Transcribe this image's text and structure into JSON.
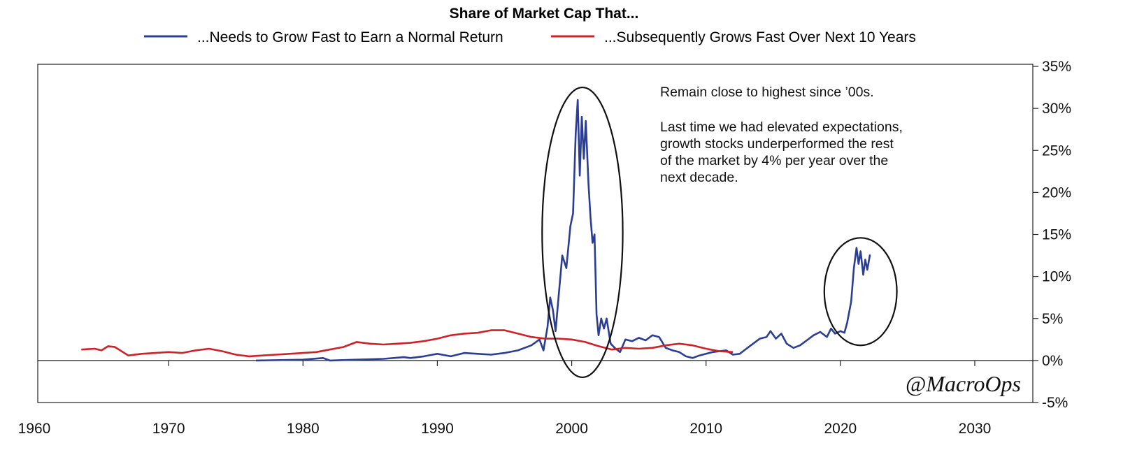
{
  "chart_data": {
    "type": "line",
    "title": "Share of Market Cap That...",
    "xlabel": "",
    "ylabel": "",
    "xlim": [
      1960,
      2035
    ],
    "ylim": [
      -5,
      35
    ],
    "x_ticks": [
      1960,
      1970,
      1980,
      1990,
      2000,
      2010,
      2020,
      2030
    ],
    "y_ticks": [
      "35%",
      "30%",
      "25%",
      "20%",
      "15%",
      "10%",
      "5%",
      "0%",
      "-5%"
    ],
    "y_tick_values": [
      35,
      30,
      25,
      20,
      15,
      10,
      5,
      0,
      -5
    ],
    "legend_position": "top-center",
    "grid": false,
    "series": [
      {
        "name": "...Needs to Grow Fast to Earn a Normal Return",
        "color": "#2c3e93",
        "points": [
          [
            1976.5,
            0.0
          ],
          [
            1980,
            0.1
          ],
          [
            1981.5,
            0.3
          ],
          [
            1982,
            0.0
          ],
          [
            1984,
            0.1
          ],
          [
            1986,
            0.2
          ],
          [
            1987.5,
            0.4
          ],
          [
            1988,
            0.3
          ],
          [
            1989,
            0.5
          ],
          [
            1990,
            0.8
          ],
          [
            1991,
            0.5
          ],
          [
            1992,
            0.9
          ],
          [
            1993,
            0.8
          ],
          [
            1994,
            0.7
          ],
          [
            1995,
            0.9
          ],
          [
            1996,
            1.2
          ],
          [
            1997,
            1.8
          ],
          [
            1997.6,
            2.5
          ],
          [
            1997.9,
            1.2
          ],
          [
            1998.2,
            4.0
          ],
          [
            1998.4,
            7.5
          ],
          [
            1998.6,
            6.0
          ],
          [
            1998.8,
            3.5
          ],
          [
            1999.1,
            9.0
          ],
          [
            1999.3,
            12.5
          ],
          [
            1999.6,
            11.0
          ],
          [
            1999.9,
            16.0
          ],
          [
            2000.1,
            17.5
          ],
          [
            2000.3,
            27.0
          ],
          [
            2000.45,
            31.0
          ],
          [
            2000.6,
            22.0
          ],
          [
            2000.75,
            29.0
          ],
          [
            2000.9,
            24.0
          ],
          [
            2001.05,
            28.5
          ],
          [
            2001.25,
            21.0
          ],
          [
            2001.4,
            17.0
          ],
          [
            2001.55,
            14.0
          ],
          [
            2001.7,
            15.0
          ],
          [
            2001.85,
            5.5
          ],
          [
            2002.0,
            3.0
          ],
          [
            2002.2,
            5.0
          ],
          [
            2002.4,
            3.8
          ],
          [
            2002.6,
            5.0
          ],
          [
            2002.9,
            2.0
          ],
          [
            2003.2,
            1.5
          ],
          [
            2003.6,
            1.0
          ],
          [
            2004,
            2.5
          ],
          [
            2004.5,
            2.3
          ],
          [
            2005,
            2.7
          ],
          [
            2005.5,
            2.4
          ],
          [
            2006,
            3.0
          ],
          [
            2006.5,
            2.8
          ],
          [
            2007,
            1.5
          ],
          [
            2007.5,
            1.2
          ],
          [
            2008,
            1.0
          ],
          [
            2008.5,
            0.5
          ],
          [
            2009,
            0.3
          ],
          [
            2009.5,
            0.6
          ],
          [
            2010,
            0.8
          ],
          [
            2010.5,
            1.0
          ],
          [
            2011,
            1.1
          ],
          [
            2011.5,
            1.2
          ],
          [
            2012,
            0.7
          ],
          [
            2012.5,
            0.8
          ],
          [
            2013,
            1.4
          ],
          [
            2013.5,
            2.0
          ],
          [
            2014,
            2.6
          ],
          [
            2014.5,
            2.8
          ],
          [
            2014.8,
            3.5
          ],
          [
            2015.2,
            2.6
          ],
          [
            2015.6,
            3.2
          ],
          [
            2016,
            2.0
          ],
          [
            2016.5,
            1.5
          ],
          [
            2017,
            1.8
          ],
          [
            2017.5,
            2.4
          ],
          [
            2018,
            3.0
          ],
          [
            2018.5,
            3.4
          ],
          [
            2019,
            2.8
          ],
          [
            2019.3,
            3.8
          ],
          [
            2019.6,
            3.2
          ],
          [
            2020.0,
            3.5
          ],
          [
            2020.3,
            3.3
          ],
          [
            2020.5,
            4.5
          ],
          [
            2020.8,
            7.0
          ],
          [
            2021.0,
            11.0
          ],
          [
            2021.2,
            13.4
          ],
          [
            2021.35,
            11.5
          ],
          [
            2021.5,
            13.0
          ],
          [
            2021.7,
            10.2
          ],
          [
            2021.85,
            12.0
          ],
          [
            2022.0,
            10.8
          ],
          [
            2022.2,
            12.6
          ]
        ]
      },
      {
        "name": "...Subsequently Grows Fast Over Next 10 Years",
        "color": "#cc2229",
        "points": [
          [
            1963.5,
            1.3
          ],
          [
            1964.5,
            1.4
          ],
          [
            1965,
            1.2
          ],
          [
            1965.5,
            1.7
          ],
          [
            1966,
            1.6
          ],
          [
            1967,
            0.6
          ],
          [
            1968,
            0.8
          ],
          [
            1969,
            0.9
          ],
          [
            1970,
            1.0
          ],
          [
            1971,
            0.9
          ],
          [
            1972,
            1.2
          ],
          [
            1973,
            1.4
          ],
          [
            1974,
            1.1
          ],
          [
            1975,
            0.7
          ],
          [
            1976,
            0.5
          ],
          [
            1977,
            0.6
          ],
          [
            1978,
            0.7
          ],
          [
            1979,
            0.8
          ],
          [
            1980,
            0.9
          ],
          [
            1981,
            1.0
          ],
          [
            1982,
            1.3
          ],
          [
            1983,
            1.6
          ],
          [
            1984,
            2.2
          ],
          [
            1985,
            2.0
          ],
          [
            1986,
            1.9
          ],
          [
            1987,
            2.0
          ],
          [
            1988,
            2.1
          ],
          [
            1989,
            2.3
          ],
          [
            1990,
            2.6
          ],
          [
            1991,
            3.0
          ],
          [
            1992,
            3.2
          ],
          [
            1993,
            3.3
          ],
          [
            1994,
            3.6
          ],
          [
            1995,
            3.6
          ],
          [
            1996,
            3.2
          ],
          [
            1997,
            2.8
          ],
          [
            1998,
            2.6
          ],
          [
            1999,
            2.6
          ],
          [
            2000,
            2.5
          ],
          [
            2001,
            2.2
          ],
          [
            2002,
            1.7
          ],
          [
            2003,
            1.3
          ],
          [
            2004,
            1.5
          ],
          [
            2005,
            1.4
          ],
          [
            2006,
            1.5
          ],
          [
            2007,
            1.8
          ],
          [
            2008,
            2.0
          ],
          [
            2009,
            1.8
          ],
          [
            2010,
            1.4
          ],
          [
            2011,
            1.1
          ],
          [
            2012,
            1.0
          ]
        ]
      }
    ],
    "annotations": {
      "line1": "Remain close to highest since ’00s.",
      "line2": "Last time we had elevated expectations,",
      "line3": "growth stocks underperformed the rest",
      "line4": "of the market by 4% per year over the",
      "line5": "next decade."
    },
    "highlight_ellipses": [
      {
        "x_range": [
          1997.8,
          2003.8
        ],
        "y_range": [
          -2,
          32.5
        ]
      },
      {
        "x_range": [
          2018.8,
          2024.2
        ],
        "y_range": [
          1.8,
          14.6
        ]
      }
    ]
  },
  "watermark": "@MacroOps"
}
